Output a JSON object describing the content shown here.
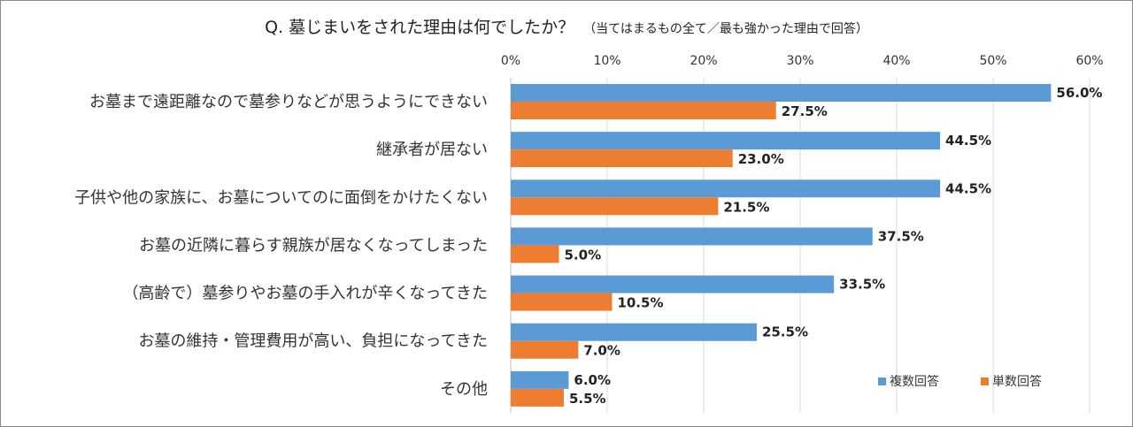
{
  "chart_data": {
    "type": "bar",
    "orientation": "horizontal",
    "title": "Q. 墓じまいをされた理由は何でしたか？",
    "subtitle": "（当てはまるもの全て／最も強かった理由で回答）",
    "categories": [
      "お墓まで遠距離なので墓参りなどが思うようにできない",
      "継承者が居ない",
      "子供や他の家族に、お墓についてのに面倒をかけたくない",
      "お墓の近隣に暮らす親族が居なくなってしまった",
      "（高齢で）墓参りやお墓の手入れが辛くなってきた",
      "お墓の維持・管理費用が高い、負担になってきた",
      "その他"
    ],
    "series": [
      {
        "name": "複数回答",
        "color": "#5b9bd5",
        "values": [
          56.0,
          44.5,
          44.5,
          37.5,
          33.5,
          25.5,
          6.0
        ],
        "labels": [
          "56.0%",
          "44.5%",
          "44.5%",
          "37.5%",
          "33.5%",
          "25.5%",
          "6.0%"
        ]
      },
      {
        "name": "単数回答",
        "color": "#ed7d31",
        "values": [
          27.5,
          23.0,
          21.5,
          5.0,
          10.5,
          7.0,
          5.5
        ],
        "labels": [
          "27.5%",
          "23.0%",
          "21.5%",
          "5.0%",
          "10.5%",
          "7.0%",
          "5.5%"
        ]
      }
    ],
    "xlim": [
      0,
      60
    ],
    "xticks": [
      0,
      10,
      20,
      30,
      40,
      50,
      60
    ],
    "xtick_labels": [
      "0%",
      "10%",
      "20%",
      "30%",
      "40%",
      "50%",
      "60%"
    ],
    "grid": true,
    "legend_position": "bottom-right"
  }
}
